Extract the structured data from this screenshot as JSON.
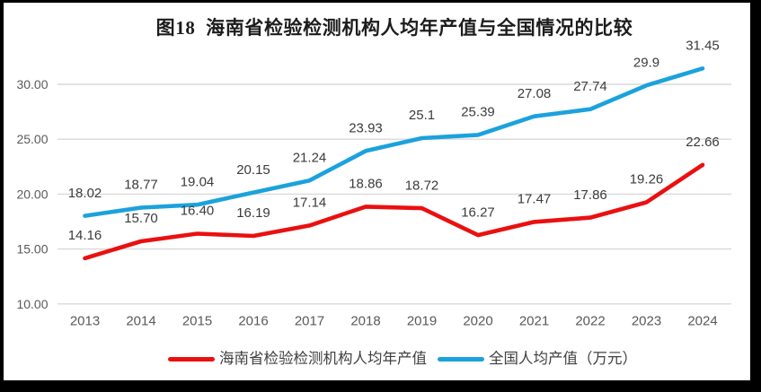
{
  "window": {
    "frame_color": "#000000",
    "panel_color": "#ffffff"
  },
  "chart_data": {
    "type": "line",
    "title": "图18  海南省检验检测机构人均年产值与全国情况的比较",
    "categories": [
      "2013",
      "2014",
      "2015",
      "2016",
      "2017",
      "2018",
      "2019",
      "2020",
      "2021",
      "2022",
      "2023",
      "2024"
    ],
    "series": [
      {
        "name": "海南省检验检测机构人均年产值",
        "color": "#ea1010",
        "values": [
          14.16,
          15.7,
          16.4,
          16.19,
          17.14,
          18.86,
          18.72,
          16.27,
          17.47,
          17.86,
          19.26,
          22.66
        ],
        "value_labels": [
          "14.16",
          "15.70",
          "16.40",
          "16.19",
          "17.14",
          "18.86",
          "18.72",
          "16.27",
          "17.47",
          "17.86",
          "19.26",
          "22.66"
        ]
      },
      {
        "name": "全国人均产值（万元）",
        "color": "#1ba2dc",
        "values": [
          18.02,
          18.77,
          19.04,
          20.15,
          21.24,
          23.93,
          25.1,
          25.39,
          27.08,
          27.74,
          29.9,
          31.45
        ],
        "value_labels": [
          "18.02",
          "18.77",
          "19.04",
          "20.15",
          "21.24",
          "23.93",
          "25.1",
          "25.39",
          "27.08",
          "27.74",
          "29.9",
          "31.45"
        ]
      }
    ],
    "y_axis": {
      "min": 10,
      "max": 30,
      "tick_step": 5,
      "tick_labels": [
        "30.00",
        "25.00",
        "20.00",
        "15.00",
        "10.00"
      ]
    },
    "grid": true,
    "legend_position": "bottom",
    "gridline_color": "#d9d9d9",
    "axis_label_color": "#595959",
    "data_label_color": "#3b3b3b"
  }
}
